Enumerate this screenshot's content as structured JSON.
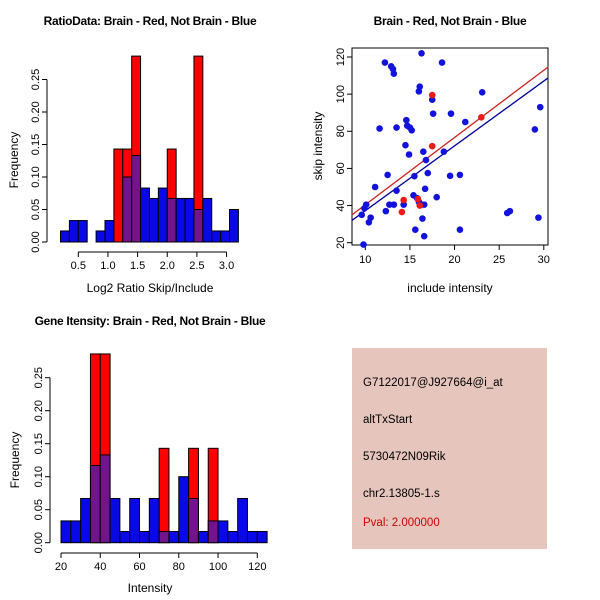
{
  "colors": {
    "red": "#FF0000",
    "blue": "#0909E8",
    "purple": "#72148C",
    "point_blue": "#1212DC",
    "point_red": "#EE1A1A",
    "line_red": "#CC2020",
    "line_blue": "#00009C",
    "axis": "#000000"
  },
  "chart_data": [
    {
      "id": "ratio_histogram",
      "type": "bar",
      "title": "RatioData: Brain - Red, Not Brain - Blue",
      "xlabel": "Log2 Ratio Skip/Include",
      "ylabel": "Frequency",
      "xticks": [
        "0.5",
        "1.0",
        "1.5",
        "2.0",
        "2.5",
        "3.0"
      ],
      "yticks": [
        "0.00",
        "0.05",
        "0.10",
        "0.15",
        "0.20",
        "0.25"
      ],
      "xlim": [
        0.1,
        3.3
      ],
      "ylim": [
        0,
        0.2857
      ],
      "bin_width": 0.15,
      "legend": "Brain - Red, Not Brain - Blue",
      "red_bars": [
        {
          "x": 1.1,
          "f": 0.143
        },
        {
          "x": 1.25,
          "f": 0.143
        },
        {
          "x": 1.4,
          "f": 0.286
        },
        {
          "x": 2.0,
          "f": 0.143
        },
        {
          "x": 2.45,
          "f": 0.286
        }
      ],
      "blue_bars": [
        {
          "x": 0.2,
          "f": 0.017
        },
        {
          "x": 0.35,
          "f": 0.033
        },
        {
          "x": 0.5,
          "f": 0.033
        },
        {
          "x": 0.8,
          "f": 0.017
        },
        {
          "x": 0.95,
          "f": 0.033
        },
        {
          "x": 1.25,
          "f": 0.1
        },
        {
          "x": 1.4,
          "f": 0.133
        },
        {
          "x": 1.55,
          "f": 0.083
        },
        {
          "x": 1.7,
          "f": 0.067
        },
        {
          "x": 1.85,
          "f": 0.083
        },
        {
          "x": 2.0,
          "f": 0.067
        },
        {
          "x": 2.15,
          "f": 0.067
        },
        {
          "x": 2.3,
          "f": 0.067
        },
        {
          "x": 2.45,
          "f": 0.05
        },
        {
          "x": 2.6,
          "f": 0.067
        },
        {
          "x": 2.75,
          "f": 0.017
        },
        {
          "x": 2.9,
          "f": 0.017
        },
        {
          "x": 3.05,
          "f": 0.05
        }
      ]
    },
    {
      "id": "intensity_scatter",
      "type": "scatter",
      "title": "Brain - Red, Not Brain - Blue",
      "xlabel": "include intensity",
      "ylabel": "skip intensity",
      "xticks": [
        "10",
        "15",
        "20",
        "25",
        "30"
      ],
      "yticks": [
        "20",
        "40",
        "60",
        "80",
        "100",
        "120"
      ],
      "xlim": [
        8.5,
        31
      ],
      "ylim": [
        14,
        126
      ],
      "points_blue": [
        [
          9.8,
          19
        ],
        [
          9.6,
          35
        ],
        [
          9.9,
          38.5
        ],
        [
          10.1,
          40.5
        ],
        [
          10.4,
          31
        ],
        [
          10.6,
          33.5
        ],
        [
          11.1,
          50
        ],
        [
          11.6,
          81.5
        ],
        [
          12.2,
          117
        ],
        [
          12.9,
          115
        ],
        [
          13.1,
          113.5
        ],
        [
          13.2,
          111
        ],
        [
          12.7,
          40.5
        ],
        [
          13.2,
          40.5
        ],
        [
          12.5,
          56.5
        ],
        [
          12.3,
          37
        ],
        [
          13.5,
          48
        ],
        [
          13.5,
          82
        ],
        [
          14.6,
          86
        ],
        [
          14.7,
          83
        ],
        [
          15.0,
          82
        ],
        [
          15.2,
          80.5
        ],
        [
          14.5,
          72.5
        ],
        [
          14.9,
          67.5
        ],
        [
          14.3,
          40.5
        ],
        [
          15.5,
          55.8
        ],
        [
          15.4,
          45.5
        ],
        [
          15.8,
          44
        ],
        [
          16.0,
          42
        ],
        [
          16.3,
          40.5
        ],
        [
          16.6,
          40.5
        ],
        [
          15.6,
          27
        ],
        [
          16.4,
          33
        ],
        [
          16.6,
          23.5
        ],
        [
          16.3,
          122
        ],
        [
          16.1,
          104
        ],
        [
          16.0,
          101.5
        ],
        [
          17.5,
          97
        ],
        [
          18.6,
          117
        ],
        [
          17.6,
          89.5
        ],
        [
          16.5,
          69
        ],
        [
          16.8,
          64.5
        ],
        [
          17.0,
          57.5
        ],
        [
          16.7,
          49
        ],
        [
          18.0,
          44.5
        ],
        [
          19.6,
          89.5
        ],
        [
          18.8,
          69
        ],
        [
          19.5,
          56
        ],
        [
          21.2,
          85
        ],
        [
          20.6,
          56.5
        ],
        [
          20.6,
          27
        ],
        [
          23.1,
          101
        ],
        [
          25.9,
          36
        ],
        [
          26.2,
          37
        ],
        [
          29.0,
          81
        ],
        [
          29.6,
          93
        ],
        [
          29.4,
          33.5
        ]
      ],
      "points_red": [
        [
          17.5,
          99.5
        ],
        [
          23.0,
          87.5
        ],
        [
          17.5,
          72
        ],
        [
          14.3,
          43
        ],
        [
          15.9,
          43.5
        ],
        [
          16.1,
          40
        ],
        [
          14.1,
          36.5
        ]
      ],
      "line_red": {
        "x1": 8.5,
        "y1": 35,
        "x2": 30.5,
        "y2": 114.7
      },
      "line_blue": {
        "x1": 8.5,
        "y1": 32,
        "x2": 30.5,
        "y2": 108.8
      }
    },
    {
      "id": "gene_intensity_histogram",
      "type": "bar",
      "title": "Gene Itensity: Brain - Red, Not Brain - Blue",
      "xlabel": "Intensity",
      "ylabel": "Frequency",
      "xticks": [
        "20",
        "40",
        "60",
        "80",
        "100",
        "120"
      ],
      "yticks": [
        "0.00",
        "0.05",
        "0.10",
        "0.15",
        "0.20",
        "0.25"
      ],
      "xlim": [
        15,
        128
      ],
      "ylim": [
        0,
        0.2857
      ],
      "bin_width": 5,
      "legend": "Brain - Red, Not Brain - Blue",
      "red_bars": [
        {
          "x": 35,
          "f": 0.286
        },
        {
          "x": 40,
          "f": 0.286
        },
        {
          "x": 70,
          "f": 0.143
        },
        {
          "x": 85,
          "f": 0.143
        },
        {
          "x": 95,
          "f": 0.143
        }
      ],
      "blue_bars": [
        {
          "x": 20,
          "f": 0.033
        },
        {
          "x": 25,
          "f": 0.033
        },
        {
          "x": 30,
          "f": 0.067
        },
        {
          "x": 35,
          "f": 0.117
        },
        {
          "x": 40,
          "f": 0.133
        },
        {
          "x": 45,
          "f": 0.067
        },
        {
          "x": 50,
          "f": 0.017
        },
        {
          "x": 55,
          "f": 0.067
        },
        {
          "x": 60,
          "f": 0.017
        },
        {
          "x": 65,
          "f": 0.067
        },
        {
          "x": 70,
          "f": 0.017
        },
        {
          "x": 75,
          "f": 0.017
        },
        {
          "x": 80,
          "f": 0.1
        },
        {
          "x": 85,
          "f": 0.067
        },
        {
          "x": 90,
          "f": 0.017
        },
        {
          "x": 95,
          "f": 0.033
        },
        {
          "x": 100,
          "f": 0.033
        },
        {
          "x": 105,
          "f": 0.017
        },
        {
          "x": 110,
          "f": 0.067
        },
        {
          "x": 115,
          "f": 0.017
        },
        {
          "x": 120,
          "f": 0.017
        }
      ]
    }
  ],
  "info_panel": {
    "background": "#E6C5BD",
    "lines": [
      "G7122017@J927664@i_at",
      "altTxStart",
      "5730472N09Rik",
      "chr2.13805-1.s",
      "Pval: 2.000000"
    ],
    "pval_color": "#CC0000"
  }
}
